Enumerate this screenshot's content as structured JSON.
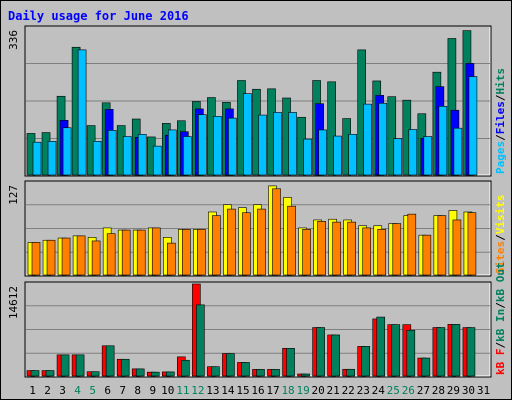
{
  "title": "Daily usage for June 2016",
  "colors": {
    "hits": "#00805c",
    "files": "#0000ff",
    "pages": "#00c0ff",
    "visits": "#ffff00",
    "sites": "#ff8000",
    "kb_in": "#00805c",
    "kb_out": "#0000ff",
    "kb_f": "#ff0000",
    "weekend_label": "#00805c",
    "weekday_label": "#000000",
    "title_color": "#0000ff"
  },
  "chart_data": [
    {
      "type": "bar",
      "panel": "hits-files-pages",
      "categories": [
        "1",
        "2",
        "3",
        "4",
        "5",
        "6",
        "7",
        "8",
        "9",
        "10",
        "11",
        "12",
        "13",
        "14",
        "15",
        "16",
        "17",
        "18",
        "19",
        "20",
        "21",
        "22",
        "23",
        "24",
        "25",
        "26",
        "27",
        "28",
        "29",
        "30",
        "31"
      ],
      "weekend_days": [
        "4",
        "5",
        "11",
        "12",
        "18",
        "19",
        "25",
        "26"
      ],
      "axis_max_label": "336",
      "ylim": [
        0,
        336
      ],
      "legend": [
        "Pages",
        "Files",
        "Hits"
      ],
      "legend_position": "right-vertical",
      "series": [
        {
          "name": "Hits",
          "values": [
            95,
            97,
            180,
            292,
            113,
            165,
            113,
            128,
            87,
            118,
            124,
            168,
            177,
            166,
            216,
            196,
            197,
            176,
            132,
            216,
            213,
            129,
            286,
            215,
            179,
            171,
            140,
            235,
            312,
            330,
            0
          ]
        },
        {
          "name": "Files",
          "values": [
            0,
            0,
            125,
            0,
            0,
            150,
            0,
            86,
            0,
            91,
            99,
            151,
            0,
            151,
            0,
            0,
            0,
            0,
            0,
            163,
            0,
            0,
            0,
            182,
            0,
            0,
            84,
            202,
            148,
            255,
            0
          ]
        },
        {
          "name": "Pages",
          "values": [
            75,
            77,
            108,
            286,
            77,
            102,
            88,
            93,
            66,
            103,
            88,
            138,
            134,
            130,
            186,
            137,
            143,
            143,
            82,
            103,
            89,
            93,
            162,
            164,
            83,
            104,
            88,
            157,
            107,
            225,
            0
          ]
        }
      ]
    },
    {
      "type": "bar",
      "panel": "visits-sites",
      "categories": [
        "1",
        "2",
        "3",
        "4",
        "5",
        "6",
        "7",
        "8",
        "9",
        "10",
        "11",
        "12",
        "13",
        "14",
        "15",
        "16",
        "17",
        "18",
        "19",
        "20",
        "21",
        "22",
        "23",
        "24",
        "25",
        "26",
        "27",
        "28",
        "29",
        "30",
        "31"
      ],
      "axis_max_label": "127",
      "ylim": [
        0,
        127
      ],
      "legend": [
        "Sites",
        "Visits"
      ],
      "legend_position": "right-vertical",
      "series": [
        {
          "name": "Visits",
          "values": [
            45,
            48,
            51,
            54,
            52,
            65,
            62,
            62,
            65,
            52,
            63,
            63,
            87,
            97,
            93,
            97,
            123,
            107,
            65,
            76,
            77,
            76,
            68,
            68,
            71,
            82,
            55,
            82,
            89,
            87,
            0
          ]
        },
        {
          "name": "Sites",
          "values": [
            45,
            48,
            51,
            54,
            47,
            57,
            62,
            62,
            65,
            44,
            63,
            63,
            82,
            91,
            86,
            91,
            119,
            95,
            63,
            74,
            73,
            73,
            65,
            63,
            71,
            84,
            55,
            82,
            76,
            86,
            0
          ]
        }
      ]
    },
    {
      "type": "bar",
      "panel": "kbytes",
      "categories": [
        "1",
        "2",
        "3",
        "4",
        "5",
        "6",
        "7",
        "8",
        "9",
        "10",
        "11",
        "12",
        "13",
        "14",
        "15",
        "16",
        "17",
        "18",
        "19",
        "20",
        "21",
        "22",
        "23",
        "24",
        "25",
        "26",
        "27",
        "28",
        "29",
        "30",
        "31"
      ],
      "axis_max_label": "14612",
      "ylim": [
        0,
        14612
      ],
      "legend": [
        "kB F",
        "kB In",
        "kB Out"
      ],
      "legend_position": "right-vertical",
      "series": [
        {
          "name": "kB F",
          "values": [
            860,
            860,
            3360,
            3360,
            680,
            4800,
            2660,
            1130,
            610,
            650,
            3040,
            14612,
            1480,
            3550,
            2150,
            1050,
            1050,
            4400,
            320,
            7700,
            6520,
            1070,
            4700,
            9060,
            8160,
            8160,
            2850,
            7700,
            8200,
            7690,
            0
          ]
        },
        {
          "name": "kB In",
          "values": [
            860,
            860,
            3360,
            3360,
            680,
            4800,
            2660,
            1130,
            610,
            650,
            2500,
            11300,
            1480,
            3550,
            2150,
            1050,
            1050,
            4400,
            320,
            7700,
            6520,
            1070,
            4700,
            9360,
            8160,
            7270,
            2850,
            7700,
            8200,
            7690,
            0
          ]
        }
      ]
    }
  ]
}
